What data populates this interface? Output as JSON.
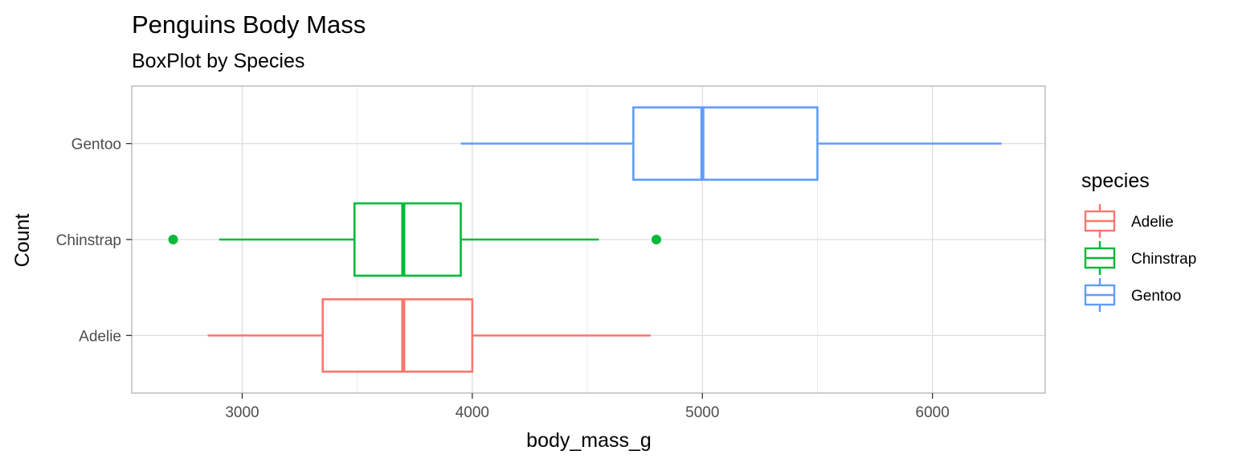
{
  "chart_data": {
    "type": "boxplot",
    "orientation": "horizontal",
    "title": "Penguins Body Mass",
    "subtitle": "BoxPlot by Species",
    "xlabel": "body_mass_g",
    "ylabel": "Count",
    "xlim": [
      2520,
      6490
    ],
    "x_ticks": [
      3000,
      4000,
      5000,
      6000
    ],
    "x_minor_ticks": [
      2500,
      3500,
      4500,
      5500,
      6500
    ],
    "categories": [
      "Adelie",
      "Chinstrap",
      "Gentoo"
    ],
    "grid": true,
    "legend": {
      "title": "species",
      "position": "right",
      "entries": [
        "Adelie",
        "Chinstrap",
        "Gentoo"
      ]
    },
    "series": [
      {
        "name": "Adelie",
        "color": "#F8766D",
        "whisker_low": 2850,
        "q1": 3350,
        "median": 3700,
        "q3": 4000,
        "whisker_high": 4775,
        "outliers": []
      },
      {
        "name": "Chinstrap",
        "color": "#00BA38",
        "whisker_low": 2900,
        "q1": 3488,
        "median": 3700,
        "q3": 3950,
        "whisker_high": 4550,
        "outliers": [
          2700,
          4800
        ]
      },
      {
        "name": "Gentoo",
        "color": "#619CFF",
        "whisker_low": 3950,
        "q1": 4700,
        "median": 5000,
        "q3": 5500,
        "whisker_high": 6300,
        "outliers": []
      }
    ]
  }
}
